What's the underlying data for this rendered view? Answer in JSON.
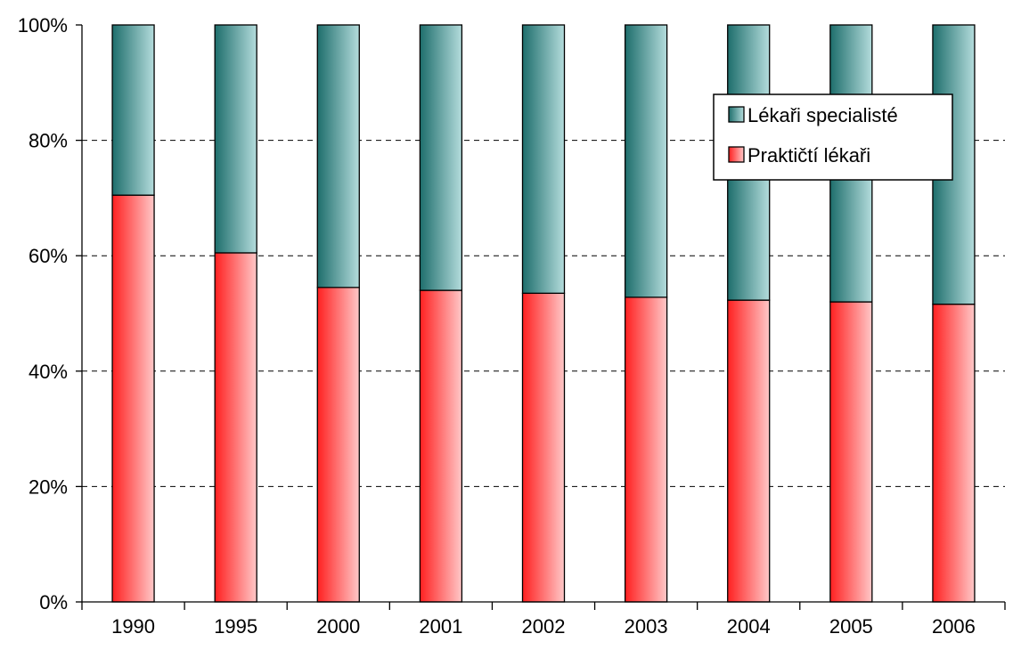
{
  "chart_data": {
    "type": "bar",
    "stacked": true,
    "percent_stacked": true,
    "categories": [
      "1990",
      "1995",
      "2000",
      "2001",
      "2002",
      "2003",
      "2004",
      "2005",
      "2006"
    ],
    "series": [
      {
        "name": "Praktičtí lékaři",
        "values": [
          70.5,
          60.5,
          54.5,
          54.0,
          53.5,
          52.8,
          52.3,
          52.0,
          51.6
        ],
        "color": "#ff2020",
        "fill_end": "#ffc8c8"
      },
      {
        "name": "Lékaři specialisté",
        "values": [
          29.5,
          39.5,
          45.5,
          46.0,
          46.5,
          47.2,
          47.7,
          48.0,
          48.4
        ],
        "color": "#1e6e6c",
        "fill_end": "#b4dcdc"
      }
    ],
    "ylim": [
      0,
      100
    ],
    "yticks": [
      "0%",
      "20%",
      "40%",
      "60%",
      "80%",
      "100%"
    ],
    "y_tick_values": [
      0,
      20,
      40,
      60,
      80,
      100
    ],
    "grid": "dashed horizontal",
    "legend_position": "top-right",
    "legend_order": [
      "Lékaři specialisté",
      "Praktičtí lékaři"
    ]
  }
}
